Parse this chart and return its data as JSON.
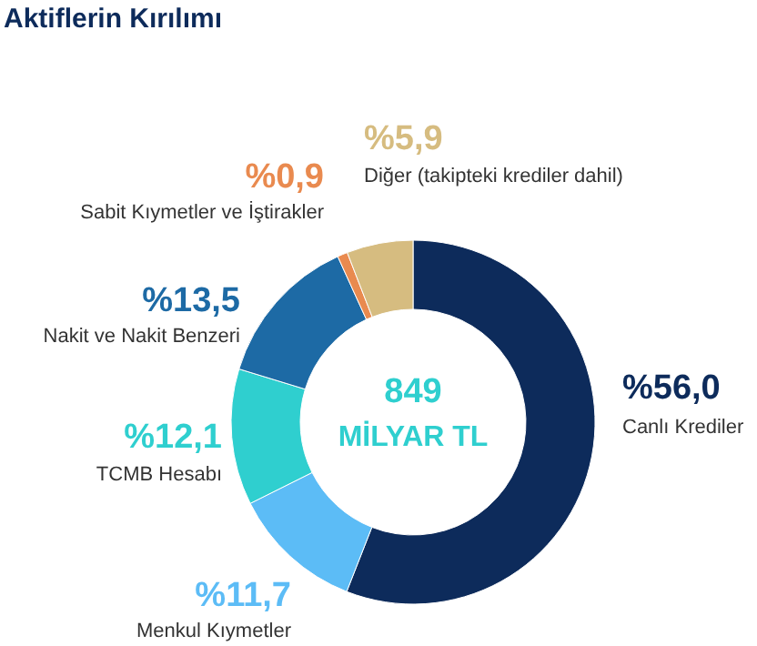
{
  "chart_data": {
    "type": "donut",
    "title": "Aktiflerin Kırılımı",
    "categories": [
      "Canlı Krediler",
      "Menkul Kıymetler",
      "TCMB Hesabı",
      "Nakit ve Nakit Benzeri",
      "Sabit Kıymetler ve İştirakler",
      "Diğer (takipteki krediler dahil)"
    ],
    "values": [
      56.0,
      11.7,
      12.1,
      13.5,
      0.9,
      5.9
    ],
    "value_labels": [
      "%56,0",
      "%11,7",
      "%12,1",
      "%13,5",
      "%0,9",
      "%5,9"
    ],
    "colors": [
      "#0d2b5b",
      "#5cbcf6",
      "#2fcfcf",
      "#1d6aa5",
      "#e98a4f",
      "#d6bc80"
    ],
    "annotations": [
      "849",
      "MİLYAR TL"
    ]
  }
}
